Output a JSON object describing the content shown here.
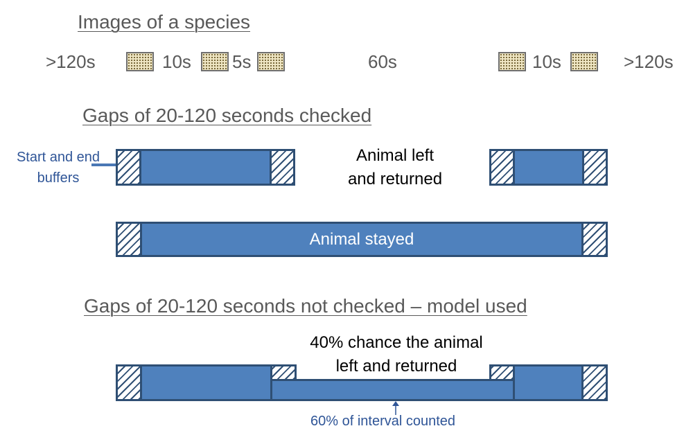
{
  "headings": {
    "images": "Images of a species",
    "checked": "Gaps of 20-120 seconds checked",
    "not_checked": "Gaps of 20-120 seconds not checked – model used"
  },
  "timeline": {
    "left_gap": ">120s",
    "gap1": "10s",
    "gap2": "5s",
    "middle_gap": "60s",
    "gap3": "10s",
    "right_gap": ">120s"
  },
  "checked_section": {
    "buffer_label": "Start and end\nbuffers",
    "left_returned": "Animal left\nand returned",
    "stayed": "Animal stayed"
  },
  "model_section": {
    "chance_label": "40% chance the animal\nleft and returned",
    "interval_label": "60% of interval counted"
  },
  "colors": {
    "bar_fill": "#4f81bd",
    "bar_border": "#2f4f74",
    "note_text": "#2f5597",
    "heading_text": "#595959",
    "thumbnail_fill": "#efe6c3"
  },
  "icons": {
    "image_thumbnail": "stippled-image-thumbnail-icon",
    "buffer_pointer": "right-arrow-icon",
    "interval_pointer": "up-arrow-icon"
  }
}
